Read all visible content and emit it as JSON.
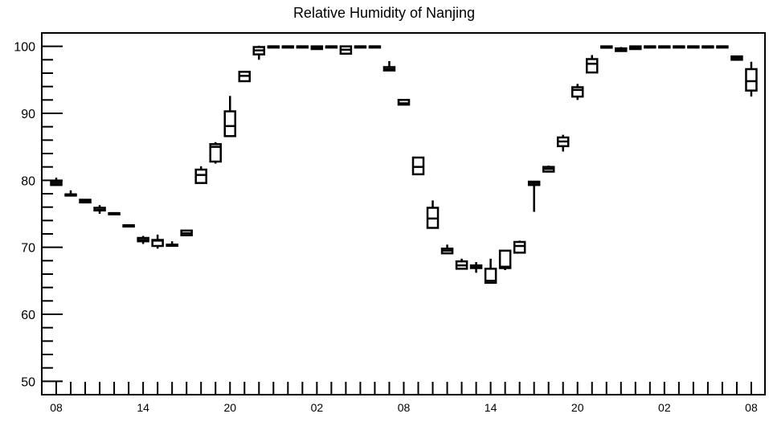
{
  "chart_data": {
    "type": "box",
    "title": "Relative Humidity of Nanjing",
    "xlabel": "",
    "ylabel": "",
    "ylim": [
      48,
      102
    ],
    "grid": false,
    "legend": "none",
    "yticks": [
      50,
      60,
      70,
      80,
      90,
      100
    ],
    "xtick_labels": [
      {
        "index": 0,
        "label": "08"
      },
      {
        "index": 6,
        "label": "14"
      },
      {
        "index": 12,
        "label": "20"
      },
      {
        "index": 18,
        "label": "02"
      },
      {
        "index": 24,
        "label": "08"
      },
      {
        "index": 30,
        "label": "14"
      },
      {
        "index": 36,
        "label": "20"
      },
      {
        "index": 42,
        "label": "02"
      },
      {
        "index": 48,
        "label": "08"
      }
    ],
    "boxes": [
      {
        "i": 0,
        "min": 79.2,
        "q1": 79.3,
        "median": 79.6,
        "q3": 79.9,
        "max": 80.4
      },
      {
        "i": 1,
        "min": 77.9,
        "q1": 77.9,
        "median": 77.9,
        "q3": 77.9,
        "max": 78.5
      },
      {
        "i": 2,
        "min": 76.7,
        "q1": 76.7,
        "median": 76.9,
        "q3": 77.1,
        "max": 77.1
      },
      {
        "i": 3,
        "min": 75.0,
        "q1": 75.5,
        "median": 75.6,
        "q3": 75.9,
        "max": 76.3
      },
      {
        "i": 4,
        "min": 75.0,
        "q1": 75.0,
        "median": 75.1,
        "q3": 75.1,
        "max": 75.2
      },
      {
        "i": 5,
        "min": 73.1,
        "q1": 73.1,
        "median": 73.2,
        "q3": 73.3,
        "max": 73.3
      },
      {
        "i": 6,
        "min": 70.5,
        "q1": 70.9,
        "median": 71.1,
        "q3": 71.4,
        "max": 71.7
      },
      {
        "i": 7,
        "min": 69.8,
        "q1": 70.2,
        "median": 71.0,
        "q3": 71.1,
        "max": 71.9
      },
      {
        "i": 8,
        "min": 70.3,
        "q1": 70.3,
        "median": 70.3,
        "q3": 70.4,
        "max": 70.9
      },
      {
        "i": 9,
        "min": 71.8,
        "q1": 71.8,
        "median": 72.1,
        "q3": 72.5,
        "max": 72.5
      },
      {
        "i": 10,
        "min": 79.5,
        "q1": 79.6,
        "median": 80.8,
        "q3": 81.6,
        "max": 82.1
      },
      {
        "i": 11,
        "min": 82.5,
        "q1": 82.8,
        "median": 85.0,
        "q3": 85.4,
        "max": 85.7
      },
      {
        "i": 12,
        "min": 86.6,
        "q1": 86.6,
        "median": 88.1,
        "q3": 90.3,
        "max": 92.6
      },
      {
        "i": 13,
        "min": 94.8,
        "q1": 94.8,
        "median": 95.6,
        "q3": 96.2,
        "max": 96.3
      },
      {
        "i": 14,
        "min": 98.0,
        "q1": 98.8,
        "median": 99.4,
        "q3": 99.9,
        "max": 100.1
      },
      {
        "i": 15,
        "min": 100.0,
        "q1": 100.0,
        "median": 100.0,
        "q3": 100.0,
        "max": 100.0
      },
      {
        "i": 16,
        "min": 100.0,
        "q1": 100.0,
        "median": 100.0,
        "q3": 100.0,
        "max": 100.0
      },
      {
        "i": 17,
        "min": 100.0,
        "q1": 100.0,
        "median": 100.0,
        "q3": 100.0,
        "max": 100.0
      },
      {
        "i": 18,
        "min": 99.6,
        "q1": 99.6,
        "median": 99.8,
        "q3": 100.0,
        "max": 100.0
      },
      {
        "i": 19,
        "min": 100.0,
        "q1": 100.0,
        "median": 100.0,
        "q3": 100.0,
        "max": 100.0
      },
      {
        "i": 20,
        "min": 98.9,
        "q1": 98.9,
        "median": 99.5,
        "q3": 100.0,
        "max": 100.0
      },
      {
        "i": 21,
        "min": 100.0,
        "q1": 100.0,
        "median": 100.0,
        "q3": 100.0,
        "max": 100.0
      },
      {
        "i": 22,
        "min": 100.0,
        "q1": 100.0,
        "median": 100.0,
        "q3": 100.0,
        "max": 100.0
      },
      {
        "i": 23,
        "min": 96.3,
        "q1": 96.4,
        "median": 96.6,
        "q3": 96.9,
        "max": 97.8
      },
      {
        "i": 24,
        "min": 91.3,
        "q1": 91.3,
        "median": 91.5,
        "q3": 92.0,
        "max": 92.0
      },
      {
        "i": 25,
        "min": 80.9,
        "q1": 80.9,
        "median": 82.0,
        "q3": 83.4,
        "max": 83.5
      },
      {
        "i": 26,
        "min": 72.9,
        "q1": 72.9,
        "median": 74.3,
        "q3": 75.9,
        "max": 77.0
      },
      {
        "i": 27,
        "min": 69.0,
        "q1": 69.1,
        "median": 69.5,
        "q3": 69.8,
        "max": 70.4
      },
      {
        "i": 28,
        "min": 66.8,
        "q1": 66.8,
        "median": 67.3,
        "q3": 67.9,
        "max": 68.3
      },
      {
        "i": 29,
        "min": 66.2,
        "q1": 66.9,
        "median": 67.1,
        "q3": 67.3,
        "max": 67.8
      },
      {
        "i": 30,
        "min": 64.7,
        "q1": 64.7,
        "median": 65.0,
        "q3": 66.8,
        "max": 68.3
      },
      {
        "i": 31,
        "min": 66.6,
        "q1": 66.9,
        "median": 67.1,
        "q3": 69.5,
        "max": 69.5
      },
      {
        "i": 32,
        "min": 69.2,
        "q1": 69.2,
        "median": 70.2,
        "q3": 70.8,
        "max": 71.0
      },
      {
        "i": 33,
        "min": 75.3,
        "q1": 79.3,
        "median": 79.6,
        "q3": 79.8,
        "max": 79.9
      },
      {
        "i": 34,
        "min": 81.3,
        "q1": 81.3,
        "median": 81.7,
        "q3": 82.0,
        "max": 82.2
      },
      {
        "i": 35,
        "min": 84.3,
        "q1": 85.1,
        "median": 85.8,
        "q3": 86.4,
        "max": 86.8
      },
      {
        "i": 36,
        "min": 92.0,
        "q1": 92.5,
        "median": 93.5,
        "q3": 93.9,
        "max": 94.4
      },
      {
        "i": 37,
        "min": 96.1,
        "q1": 96.1,
        "median": 97.4,
        "q3": 98.1,
        "max": 98.7
      },
      {
        "i": 38,
        "min": 99.8,
        "q1": 99.8,
        "median": 99.9,
        "q3": 100.0,
        "max": 100.0
      },
      {
        "i": 39,
        "min": 99.3,
        "q1": 99.3,
        "median": 99.5,
        "q3": 99.7,
        "max": 99.9
      },
      {
        "i": 40,
        "min": 99.6,
        "q1": 99.6,
        "median": 99.8,
        "q3": 100.0,
        "max": 100.0
      },
      {
        "i": 41,
        "min": 100.0,
        "q1": 100.0,
        "median": 100.0,
        "q3": 100.0,
        "max": 100.0
      },
      {
        "i": 42,
        "min": 100.0,
        "q1": 100.0,
        "median": 100.0,
        "q3": 100.0,
        "max": 100.0
      },
      {
        "i": 43,
        "min": 100.0,
        "q1": 100.0,
        "median": 100.0,
        "q3": 100.0,
        "max": 100.0
      },
      {
        "i": 44,
        "min": 100.0,
        "q1": 100.0,
        "median": 100.0,
        "q3": 100.0,
        "max": 100.0
      },
      {
        "i": 45,
        "min": 100.0,
        "q1": 100.0,
        "median": 100.0,
        "q3": 100.0,
        "max": 100.0
      },
      {
        "i": 46,
        "min": 100.0,
        "q1": 100.0,
        "median": 100.0,
        "q3": 100.0,
        "max": 100.0
      },
      {
        "i": 47,
        "min": 98.0,
        "q1": 98.0,
        "median": 98.3,
        "q3": 98.5,
        "max": 98.5
      },
      {
        "i": 48,
        "min": 92.5,
        "q1": 93.4,
        "median": 94.8,
        "q3": 96.6,
        "max": 97.7
      }
    ]
  }
}
